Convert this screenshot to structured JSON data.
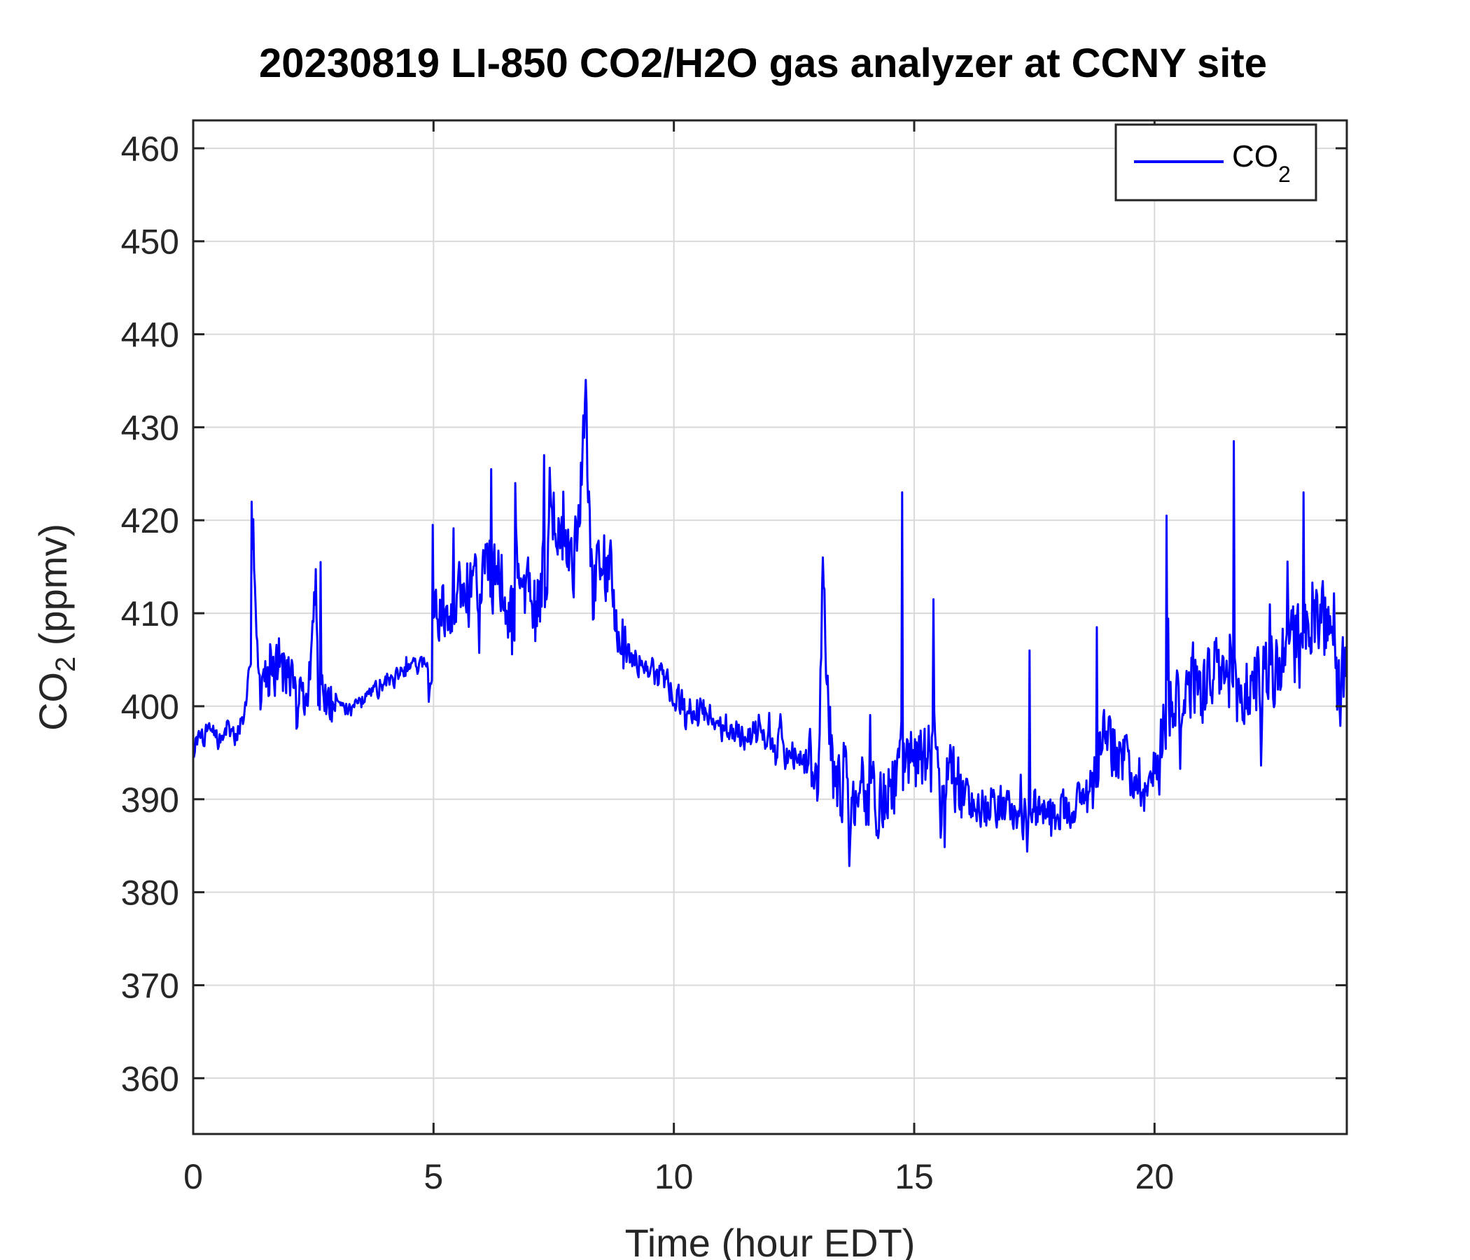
{
  "chart_data": {
    "type": "line",
    "title": "20230819 LI-850 CO2/H2O gas analyzer at CCNY site",
    "xlabel": "Time (hour EDT)",
    "ylabel": {
      "main": "CO",
      "sub": "2",
      "suffix": " (ppmv)"
    },
    "xlim": [
      0,
      24
    ],
    "ylim": [
      354,
      463
    ],
    "xticks": [
      0,
      5,
      10,
      15,
      20
    ],
    "yticks": [
      360,
      370,
      380,
      390,
      400,
      410,
      420,
      430,
      440,
      450,
      460
    ],
    "grid": true,
    "legend_position": "top-right",
    "series": [
      {
        "name": {
          "main": "CO",
          "sub": "2"
        },
        "color": "#0000ff",
        "anchors": {
          "x": [
            0.0,
            0.1,
            0.3,
            0.5,
            0.7,
            0.9,
            1.1,
            1.2,
            1.25,
            1.3,
            1.4,
            1.6,
            1.8,
            2.0,
            2.2,
            2.4,
            2.55,
            2.6,
            2.7,
            2.9,
            3.0,
            3.3,
            3.6,
            3.9,
            4.2,
            4.5,
            4.8,
            4.95,
            5.0,
            5.2,
            5.4,
            5.6,
            5.8,
            6.0,
            6.2,
            6.3,
            6.5,
            6.7,
            6.8,
            7.0,
            7.2,
            7.4,
            7.5,
            7.7,
            7.8,
            7.9,
            8.0,
            8.15,
            8.3,
            8.5,
            8.7,
            8.8,
            8.9,
            9.2,
            9.5,
            9.8,
            10.1,
            10.4,
            10.7,
            11.0,
            11.3,
            11.6,
            11.9,
            12.2,
            12.4,
            12.6,
            12.8,
            13.0,
            13.1,
            13.3,
            13.6,
            13.9,
            14.2,
            14.5,
            14.7,
            14.8,
            15.0,
            15.2,
            15.4,
            15.6,
            15.8,
            16.0,
            16.3,
            16.6,
            16.9,
            17.2,
            17.4,
            17.6,
            17.9,
            18.2,
            18.5,
            18.8,
            18.9,
            19.1,
            19.3,
            19.6,
            19.9,
            20.1,
            20.2,
            20.4,
            20.6,
            20.8,
            21.0,
            21.2,
            21.4,
            21.6,
            21.7,
            21.9,
            22.1,
            22.3,
            22.5,
            22.7,
            22.9,
            23.1,
            23.2,
            23.4,
            23.6,
            23.8,
            24.0
          ],
          "y": [
            395.5,
            396.5,
            397.2,
            396.0,
            398.0,
            396.5,
            400.5,
            405.0,
            421.5,
            408.0,
            405.0,
            403.0,
            405.0,
            402.0,
            401.5,
            400.0,
            415.0,
            401.0,
            401.5,
            400.0,
            400.0,
            399.5,
            401.0,
            402.0,
            403.0,
            404.0,
            404.5,
            405.0,
            410.0,
            411.0,
            412.0,
            413.0,
            413.0,
            415.0,
            414.0,
            415.5,
            411.0,
            411.0,
            414.0,
            411.0,
            411.0,
            416.5,
            418.0,
            417.0,
            418.0,
            416.0,
            418.0,
            432.0,
            414.0,
            413.0,
            413.0,
            411.0,
            406.0,
            405.0,
            404.0,
            403.0,
            400.5,
            400.0,
            399.0,
            398.0,
            397.0,
            397.0,
            396.5,
            396.0,
            394.0,
            395.0,
            393.0,
            392.5,
            415.5,
            392.0,
            391.0,
            390.0,
            390.0,
            391.0,
            393.0,
            396.0,
            394.0,
            395.0,
            394.0,
            393.0,
            391.5,
            390.0,
            389.5,
            390.0,
            389.0,
            388.0,
            388.5,
            388.0,
            389.0,
            389.0,
            390.0,
            394.0,
            398.0,
            396.0,
            395.0,
            393.0,
            391.0,
            395.0,
            400.0,
            402.0,
            401.0,
            403.0,
            402.0,
            402.0,
            404.0,
            401.0,
            400.0,
            402.0,
            403.0,
            403.0,
            404.0,
            405.0,
            407.0,
            408.0,
            410.0,
            408.0,
            409.0,
            402.0,
            402.5
          ]
        },
        "spikes": [
          [
            1.22,
            422
          ],
          [
            2.65,
            415.5
          ],
          [
            4.98,
            419.5
          ],
          [
            6.2,
            425.5
          ],
          [
            6.7,
            424
          ],
          [
            7.3,
            427
          ],
          [
            8.15,
            432.5
          ],
          [
            13.1,
            416
          ],
          [
            14.75,
            423
          ],
          [
            15.4,
            411.5
          ],
          [
            17.4,
            406
          ],
          [
            18.8,
            408.5
          ],
          [
            20.25,
            420.5
          ],
          [
            21.65,
            428.5
          ],
          [
            23.1,
            423
          ]
        ]
      }
    ]
  }
}
